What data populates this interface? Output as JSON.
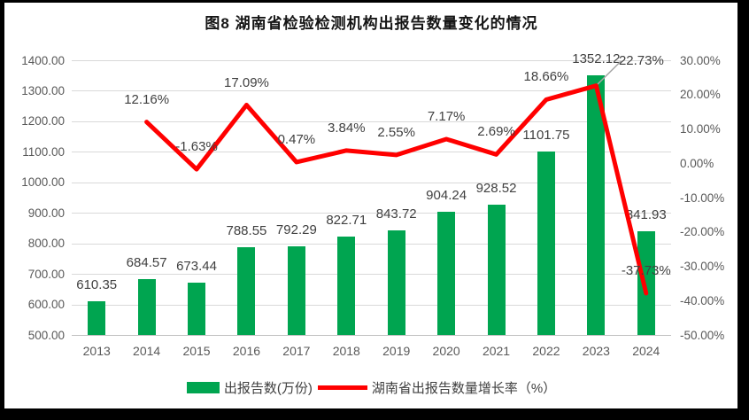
{
  "title": "图8 湖南省检验检测机构出报告数量变化的情况",
  "legend": {
    "bar_label": "出报告数(万份)",
    "line_label": "湖南省出报告数量增长率（%）"
  },
  "colors": {
    "bar": "#00A550",
    "line": "#FF0000",
    "grid": "#D9D9D9",
    "axis_line": "#BFBFBF",
    "tick_text": "#595959",
    "data_label_text": "#404040",
    "leader_line": "#A6A6A6",
    "frame": "#000000",
    "background": "#FFFFFF"
  },
  "chart_data": {
    "type": "bar+line",
    "title": "图8 湖南省检验检测机构出报告数量变化的情况",
    "categories": [
      "2013",
      "2014",
      "2015",
      "2016",
      "2017",
      "2018",
      "2019",
      "2020",
      "2021",
      "2022",
      "2023",
      "2024"
    ],
    "series": [
      {
        "name": "出报告数(万份)",
        "type": "bar",
        "yaxis": "left",
        "color": "#00A550",
        "values": [
          610.35,
          684.57,
          673.44,
          788.55,
          792.29,
          822.71,
          843.72,
          904.24,
          928.52,
          1101.75,
          1352.12,
          841.93
        ]
      },
      {
        "name": "湖南省出报告数量增长率（%）",
        "type": "line",
        "yaxis": "right",
        "color": "#FF0000",
        "values": [
          null,
          12.16,
          -1.63,
          17.09,
          0.47,
          3.84,
          2.55,
          7.17,
          2.69,
          18.66,
          22.73,
          -37.73
        ]
      }
    ],
    "left_axis": {
      "min": 500,
      "max": 1400,
      "step": 100,
      "tick_format": "two-decimals",
      "ticks": [
        "500.00",
        "600.00",
        "700.00",
        "800.00",
        "900.00",
        "1000.00",
        "1100.00",
        "1200.00",
        "1300.00",
        "1400.00"
      ]
    },
    "right_axis": {
      "min": -50,
      "max": 30,
      "step": 10,
      "tick_format": "percent-two-decimals",
      "ticks": [
        "-50.00%",
        "-40.00%",
        "-30.00%",
        "-20.00%",
        "-10.00%",
        "0.00%",
        "10.00%",
        "20.00%",
        "30.00%"
      ]
    },
    "grid": true,
    "legend_position": "bottom",
    "data_labels": true
  }
}
